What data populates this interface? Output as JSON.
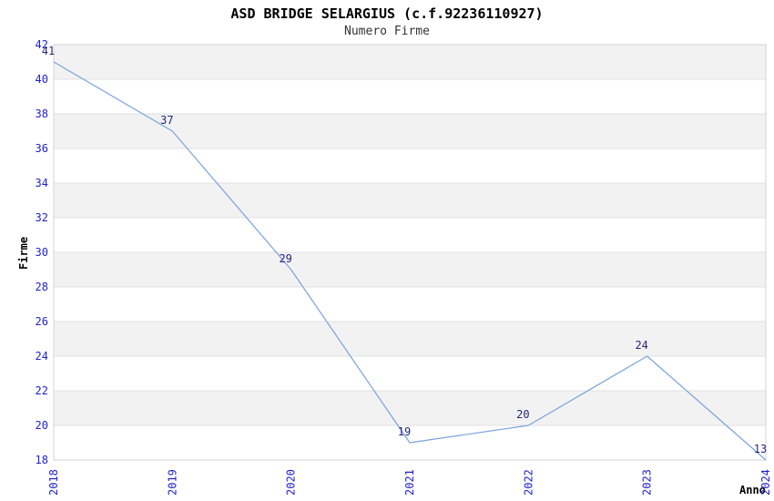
{
  "chart_data": {
    "type": "line",
    "title": "ASD BRIDGE SELARGIUS (c.f.92236110927)",
    "subtitle": "Numero Firme",
    "xlabel": "Anno",
    "ylabel": "Firme",
    "categories": [
      "2018",
      "2019",
      "2020",
      "2021",
      "2022",
      "2023",
      "2024"
    ],
    "series": [
      {
        "name": "Numero Firme",
        "values": [
          41,
          37,
          29,
          19,
          20,
          24,
          13
        ]
      }
    ],
    "ylim": [
      18,
      42
    ],
    "ytick_step": 2,
    "yticks": [
      42,
      40,
      38,
      36,
      34,
      32,
      30,
      28,
      26,
      24,
      22,
      20,
      18
    ],
    "grid": "horizontal gridlines every 2 units with alternating band fill",
    "legend_position": "none",
    "value_labels_shown": true,
    "x_tick_rotation_deg": 90,
    "colors": {
      "line": "#79a3dc",
      "tick_label": "#2222cc",
      "value_label": "#26267d",
      "band_fill": "#f2f2f2",
      "gridline": "#e0e0e0",
      "frame": "#d4d4d4",
      "title": "#000000",
      "subtitle": "#333333",
      "axis_title": "#000000",
      "background": "#ffffff"
    }
  }
}
